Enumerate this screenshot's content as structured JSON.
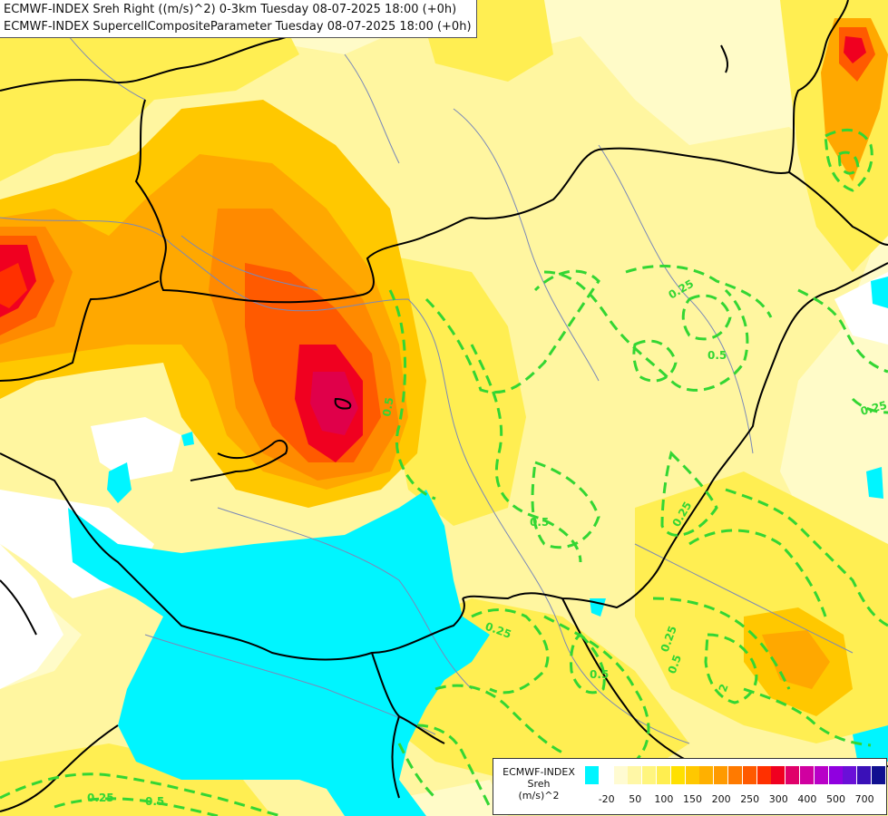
{
  "title": {
    "line1": "ECMWF-INDEX Sreh Right ((m/s)^2) 0-3km Tuesday 08-07-2025 18:00 (+0h)",
    "line2": "ECMWF-INDEX SupercellCompositeParameter Tuesday 08-07-2025 18:00 (+0h)"
  },
  "legend": {
    "model": "ECMWF-INDEX",
    "field": "Sreh",
    "unit": "(m/s)^2",
    "labels": [
      "-20",
      "50",
      "100",
      "150",
      "200",
      "250",
      "300",
      "400",
      "500",
      "700"
    ],
    "colors": [
      "#00f5ff",
      "#ffffff",
      "#fffbd2",
      "#fff7a6",
      "#fff57e",
      "#ffee50",
      "#ffe000",
      "#ffc800",
      "#ffb000",
      "#ff9a00",
      "#ff7a00",
      "#ff5a00",
      "#ff3000",
      "#f00020",
      "#e0006a",
      "#d000a0",
      "#b800c8",
      "#9000e0",
      "#6a10d8",
      "#3a10b8",
      "#101090"
    ]
  },
  "contours": {
    "scp_labels": [
      "0.25",
      "0.5",
      "0.25",
      "0.5",
      "0.5",
      "0.25",
      "0.25",
      "0.5",
      "0.25",
      "0.5",
      "2",
      "0.25",
      "0.5"
    ]
  },
  "colors": {
    "land_base": "#fffbc8",
    "sea_low": "#00f5ff",
    "scp_contour": "#33d633",
    "border": "#000000",
    "river": "#7a88b8"
  }
}
